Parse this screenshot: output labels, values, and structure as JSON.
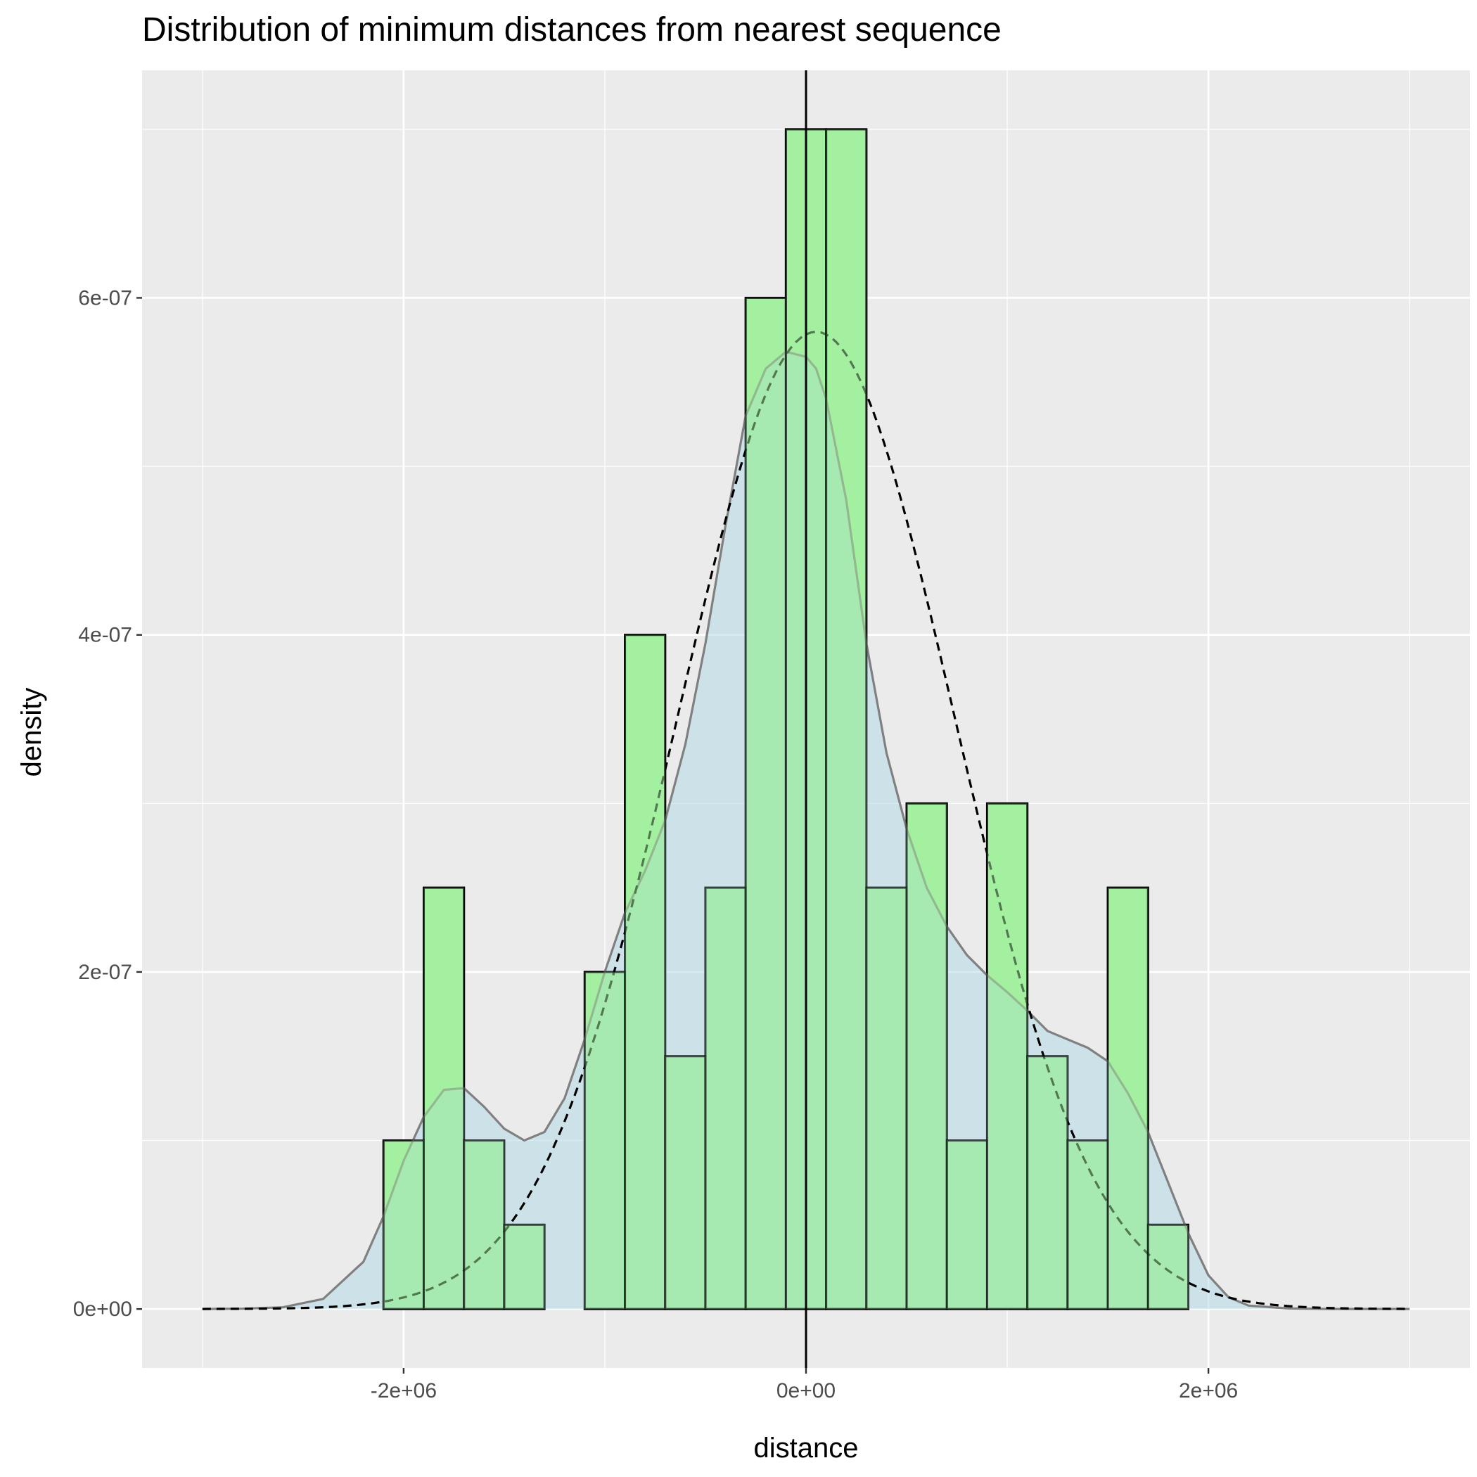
{
  "chart_data": {
    "type": "bar",
    "title": "Distribution of minimum distances from nearest sequence",
    "xlabel": "distance",
    "ylabel": "density",
    "x_ticks": [
      {
        "value": -2000000,
        "label": "-2e+06"
      },
      {
        "value": 0,
        "label": "0e+00"
      },
      {
        "value": 2000000,
        "label": "2e+06"
      }
    ],
    "y_ticks": [
      {
        "value": 0,
        "label": "0e+00"
      },
      {
        "value": 2e-07,
        "label": "2e-07"
      },
      {
        "value": 4e-07,
        "label": "4e-07"
      },
      {
        "value": 6e-07,
        "label": "6e-07"
      }
    ],
    "xlim": [
      -3300000,
      3300000
    ],
    "ylim": [
      -3.5e-08,
      7.35e-07
    ],
    "bin_width": 200000,
    "grid": true,
    "vline_x": 0,
    "series": [
      {
        "kind": "histogram",
        "fill": "#a3f0a0",
        "stroke": "#000000",
        "bins": [
          {
            "x0": -2100000,
            "x1": -1900000,
            "value": 1e-07
          },
          {
            "x0": -1900000,
            "x1": -1700000,
            "value": 2.5e-07
          },
          {
            "x0": -1700000,
            "x1": -1500000,
            "value": 1e-07
          },
          {
            "x0": -1500000,
            "x1": -1300000,
            "value": 5e-08
          },
          {
            "x0": -1100000,
            "x1": -900000,
            "value": 2e-07
          },
          {
            "x0": -900000,
            "x1": -700000,
            "value": 4e-07
          },
          {
            "x0": -700000,
            "x1": -500000,
            "value": 1.5e-07
          },
          {
            "x0": -500000,
            "x1": -300000,
            "value": 2.5e-07
          },
          {
            "x0": -300000,
            "x1": -100000,
            "value": 6e-07
          },
          {
            "x0": -100000,
            "x1": 100000,
            "value": 7e-07
          },
          {
            "x0": 100000,
            "x1": 300000,
            "value": 7e-07
          },
          {
            "x0": 300000,
            "x1": 500000,
            "value": 2.5e-07
          },
          {
            "x0": 500000,
            "x1": 700000,
            "value": 3e-07
          },
          {
            "x0": 700000,
            "x1": 900000,
            "value": 1e-07
          },
          {
            "x0": 900000,
            "x1": 1100000,
            "value": 3e-07
          },
          {
            "x0": 1100000,
            "x1": 1300000,
            "value": 1.5e-07
          },
          {
            "x0": 1300000,
            "x1": 1500000,
            "value": 1e-07
          },
          {
            "x0": 1500000,
            "x1": 1700000,
            "value": 2.5e-07
          },
          {
            "x0": 1700000,
            "x1": 1900000,
            "value": 5e-08
          }
        ]
      },
      {
        "kind": "density",
        "fill": "#add8e6",
        "fill_opacity": 0.5,
        "stroke": "#808080",
        "x": [
          -3000000,
          -2800000,
          -2600000,
          -2400000,
          -2200000,
          -2100000,
          -2000000,
          -1900000,
          -1800000,
          -1700000,
          -1600000,
          -1500000,
          -1400000,
          -1300000,
          -1200000,
          -1100000,
          -1000000,
          -900000,
          -800000,
          -700000,
          -600000,
          -500000,
          -400000,
          -300000,
          -200000,
          -100000,
          0,
          50000,
          100000,
          200000,
          300000,
          400000,
          500000,
          600000,
          700000,
          800000,
          900000,
          1000000,
          1100000,
          1200000,
          1300000,
          1400000,
          1500000,
          1600000,
          1700000,
          1800000,
          1900000,
          2000000,
          2100000,
          2200000,
          2400000,
          2600000,
          2800000,
          3000000
        ],
        "y": [
          0,
          2e-10,
          1e-09,
          6e-09,
          2.8e-08,
          5.5e-08,
          8.8e-08,
          1.14e-07,
          1.3e-07,
          1.31e-07,
          1.2e-07,
          1.07e-07,
          1e-07,
          1.05e-07,
          1.25e-07,
          1.6e-07,
          2e-07,
          2.35e-07,
          2.6e-07,
          2.9e-07,
          3.35e-07,
          3.95e-07,
          4.65e-07,
          5.3e-07,
          5.58e-07,
          5.68e-07,
          5.65e-07,
          5.58e-07,
          5.4e-07,
          4.8e-07,
          3.95e-07,
          3.3e-07,
          2.85e-07,
          2.5e-07,
          2.27e-07,
          2.1e-07,
          1.98e-07,
          1.88e-07,
          1.77e-07,
          1.65e-07,
          1.6e-07,
          1.55e-07,
          1.47e-07,
          1.28e-07,
          1.05e-07,
          7.5e-08,
          4.5e-08,
          2e-08,
          7e-09,
          2e-09,
          3e-10,
          0,
          0,
          0
        ]
      },
      {
        "kind": "normal_curve",
        "stroke": "#000000",
        "dash": true,
        "mean": 50000,
        "sd": 688000
      },
      {
        "kind": "histogram_overlay",
        "fill": "#a3f0a0",
        "fill_opacity": 0.5,
        "stroke": "#000000",
        "stroke_opacity": 0.5,
        "bins_ref": "series.0.bins"
      }
    ]
  }
}
